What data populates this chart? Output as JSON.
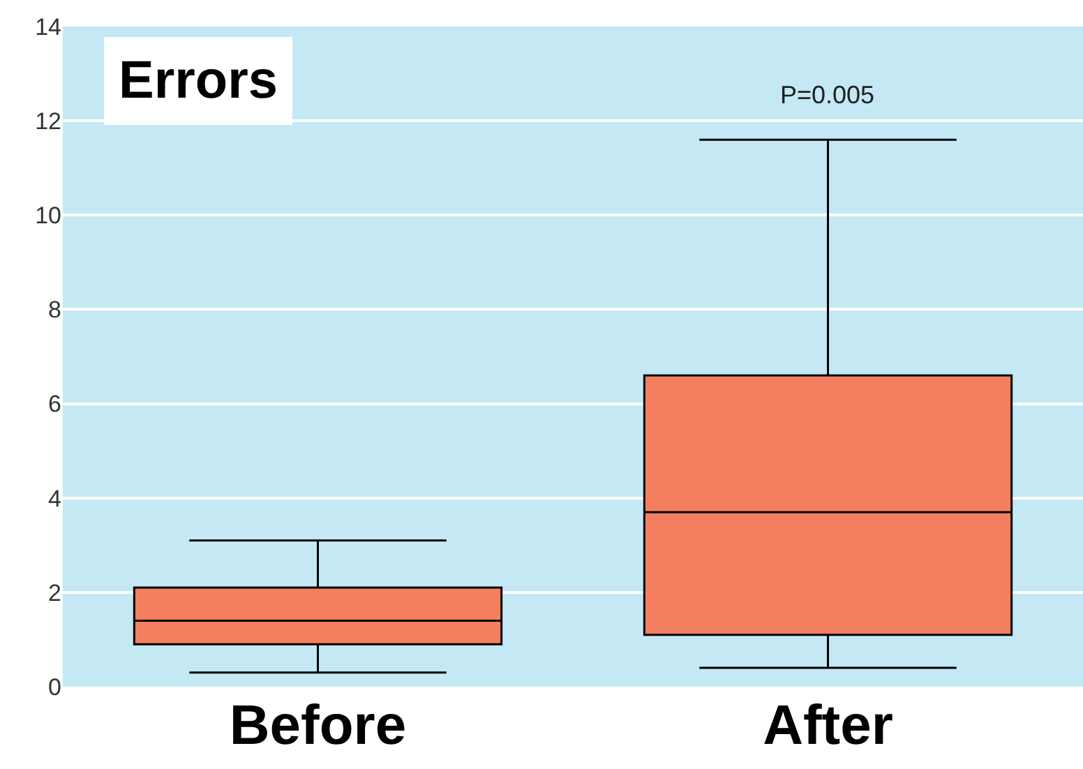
{
  "chart_data": {
    "type": "box",
    "title": "Errors",
    "categories": [
      "Before",
      "After"
    ],
    "boxes": [
      {
        "low": 0.3,
        "q1": 0.9,
        "median": 1.4,
        "q3": 2.1,
        "high": 3.1
      },
      {
        "low": 0.4,
        "q1": 1.1,
        "median": 3.7,
        "q3": 6.6,
        "high": 11.6
      }
    ],
    "color": "#f47f60",
    "ylim": [
      0,
      14
    ],
    "yticks": [
      0,
      2,
      4,
      6,
      8,
      10,
      12,
      14
    ],
    "grid": "y",
    "annotations": [
      "P=0.005"
    ]
  }
}
